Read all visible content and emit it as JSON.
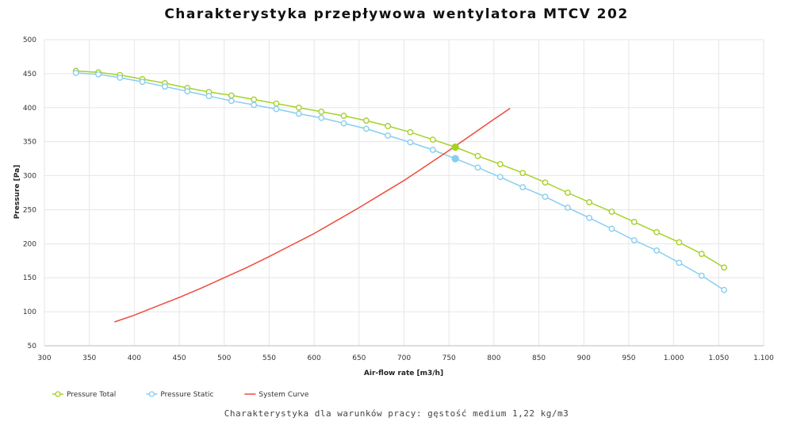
{
  "chart_data": {
    "type": "line",
    "title": "Charakterystyka przepływowa wentylatora MTCV 202",
    "subtitle": "Charakterystyka dla warunków pracy: gęstość medium 1,22 kg/m3",
    "xlabel": "Air-flow rate [m3/h]",
    "ylabel": "Pressure [Pa]",
    "xlim": [
      300,
      1100
    ],
    "ylim": [
      50,
      500
    ],
    "x_ticks": [
      300,
      350,
      400,
      450,
      500,
      550,
      600,
      650,
      700,
      750,
      800,
      850,
      900,
      950,
      1000,
      1050,
      1100
    ],
    "x_tick_labels": [
      "300",
      "350",
      "400",
      "450",
      "500",
      "550",
      "600",
      "650",
      "700",
      "750",
      "800",
      "850",
      "900",
      "950",
      "1.000",
      "1.050",
      "1.100"
    ],
    "y_ticks": [
      50,
      100,
      150,
      200,
      250,
      300,
      350,
      400,
      450,
      500
    ],
    "y_tick_labels": [
      "50",
      "100",
      "150",
      "200",
      "250",
      "300",
      "350",
      "400",
      "450",
      "500"
    ],
    "grid": true,
    "legend_position": "bottom-left",
    "series": [
      {
        "name": "Pressure Total",
        "color": "#a6d12b",
        "marker": "hollow-circle",
        "x": [
          335,
          360,
          384,
          409,
          434,
          459,
          483,
          508,
          533,
          558,
          583,
          608,
          633,
          658,
          682,
          707,
          732,
          757,
          782,
          807,
          832,
          857,
          882,
          906,
          931,
          956,
          981,
          1006,
          1031,
          1056
        ],
        "y": [
          454,
          452,
          448,
          442,
          436,
          429,
          423,
          418,
          412,
          406,
          400,
          394,
          388,
          381,
          373,
          364,
          353,
          342,
          329,
          317,
          304,
          290,
          275,
          261,
          247,
          232,
          217,
          202,
          185,
          165
        ]
      },
      {
        "name": "Pressure Static",
        "color": "#87cef0",
        "marker": "hollow-circle",
        "x": [
          335,
          360,
          384,
          409,
          434,
          459,
          483,
          508,
          533,
          558,
          583,
          608,
          633,
          658,
          682,
          707,
          732,
          757,
          782,
          807,
          832,
          857,
          882,
          906,
          931,
          956,
          981,
          1006,
          1031,
          1056
        ],
        "y": [
          451,
          449,
          444,
          438,
          431,
          424,
          417,
          410,
          404,
          398,
          391,
          385,
          377,
          369,
          359,
          349,
          338,
          325,
          312,
          298,
          283,
          269,
          253,
          238,
          222,
          205,
          190,
          172,
          153,
          132
        ]
      },
      {
        "name": "System Curve",
        "color": "#f04b3c",
        "marker": "none",
        "x": [
          378,
          400,
          425,
          450,
          475,
          500,
          525,
          550,
          575,
          600,
          625,
          650,
          675,
          700,
          725,
          750,
          775,
          800,
          818
        ],
        "y": [
          85,
          95,
          108,
          121,
          135,
          150,
          165,
          181,
          198,
          215,
          234,
          253,
          273,
          293,
          315,
          337,
          360,
          383,
          399
        ]
      }
    ],
    "operating_points": [
      {
        "series": "Pressure Total",
        "x": 757,
        "y": 342
      },
      {
        "series": "Pressure Static",
        "x": 757,
        "y": 325
      }
    ]
  }
}
